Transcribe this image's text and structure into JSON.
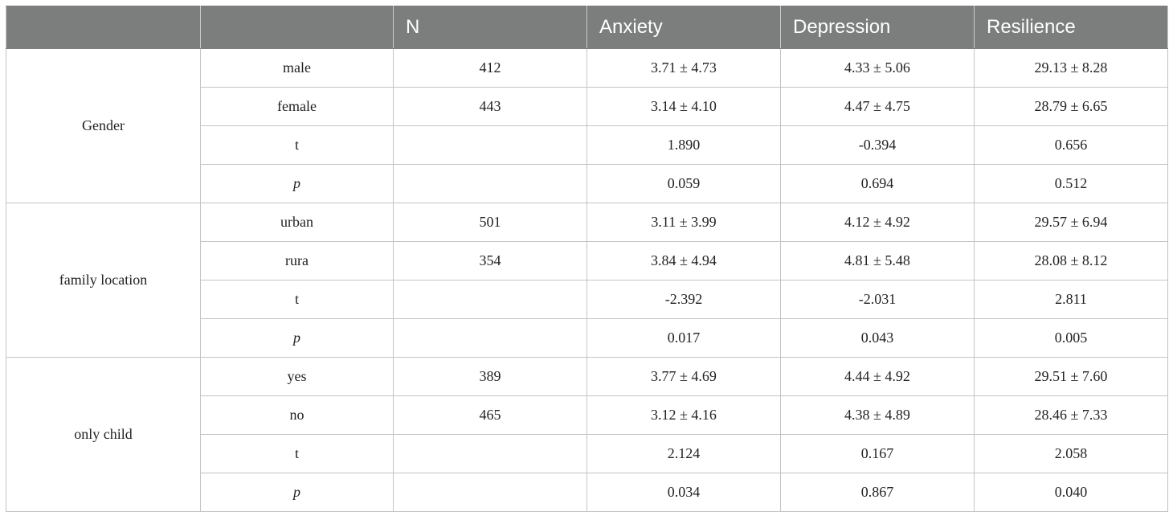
{
  "header": {
    "col0": "",
    "col1": "",
    "col2": "N",
    "col3": "Anxiety",
    "col4": "Depression",
    "col5": "Resilience"
  },
  "groups": [
    {
      "label": "Gender",
      "rows": [
        {
          "sub": "male",
          "n": "412",
          "anxiety": "3.71 ± 4.73",
          "depression": "4.33 ± 5.06",
          "resilience": "29.13 ± 8.28"
        },
        {
          "sub": "female",
          "n": "443",
          "anxiety": "3.14 ± 4.10",
          "depression": "4.47 ± 4.75",
          "resilience": "28.79 ± 6.65"
        },
        {
          "sub": "t",
          "n": "",
          "anxiety": "1.890",
          "depression": "-0.394",
          "resilience": "0.656"
        },
        {
          "sub": "p",
          "n": "",
          "anxiety": "0.059",
          "depression": "0.694",
          "resilience": "0.512"
        }
      ]
    },
    {
      "label": "family location",
      "rows": [
        {
          "sub": "urban",
          "n": "501",
          "anxiety": "3.11 ± 3.99",
          "depression": "4.12 ± 4.92",
          "resilience": "29.57 ± 6.94"
        },
        {
          "sub": "rura",
          "n": "354",
          "anxiety": "3.84 ± 4.94",
          "depression": "4.81 ± 5.48",
          "resilience": "28.08 ± 8.12"
        },
        {
          "sub": "t",
          "n": "",
          "anxiety": "-2.392",
          "depression": "-2.031",
          "resilience": "2.811"
        },
        {
          "sub": "p",
          "n": "",
          "anxiety": "0.017",
          "depression": "0.043",
          "resilience": "0.005"
        }
      ]
    },
    {
      "label": "only child",
      "rows": [
        {
          "sub": "yes",
          "n": "389",
          "anxiety": "3.77 ± 4.69",
          "depression": "4.44 ± 4.92",
          "resilience": "29.51 ± 7.60"
        },
        {
          "sub": "no",
          "n": "465",
          "anxiety": "3.12 ± 4.16",
          "depression": "4.38 ± 4.89",
          "resilience": "28.46 ± 7.33"
        },
        {
          "sub": "t",
          "n": "",
          "anxiety": "2.124",
          "depression": "0.167",
          "resilience": "2.058"
        },
        {
          "sub": "p",
          "n": "",
          "anxiety": "0.034",
          "depression": "0.867",
          "resilience": "0.040"
        }
      ]
    }
  ]
}
